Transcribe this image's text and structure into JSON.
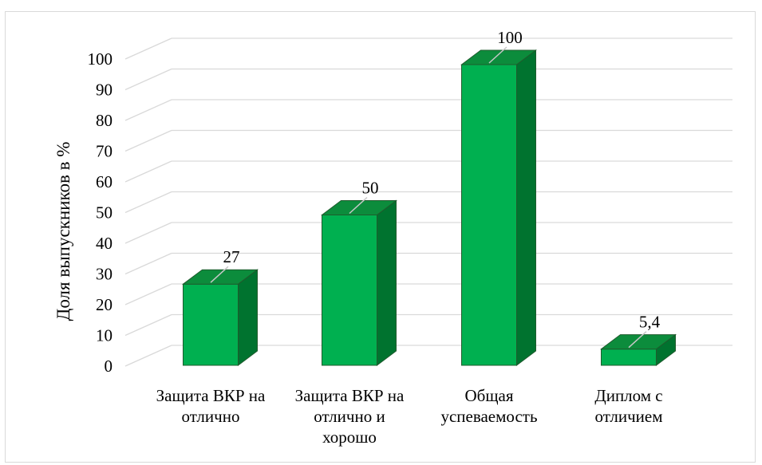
{
  "chart_data": {
    "type": "bar",
    "style": "3d-column",
    "categories": [
      [
        "Защита ВКР на",
        "отлично"
      ],
      [
        "Защита ВКР на",
        "отлично и",
        "хорошо"
      ],
      [
        "Общая",
        "успеваемость"
      ],
      [
        "Диплом с",
        "отличием"
      ]
    ],
    "values": [
      27,
      50,
      100,
      5.4
    ],
    "data_labels": [
      "27",
      "50",
      "100",
      "5,4"
    ],
    "title": "",
    "xlabel": "",
    "ylabel": "Доля выпускников в %",
    "ylim": [
      0,
      100
    ],
    "yticks": [
      0,
      10,
      20,
      30,
      40,
      50,
      60,
      70,
      80,
      90,
      100
    ],
    "grid": true,
    "legend": "none"
  },
  "colors": {
    "bar_front": "#00b050",
    "bar_side": "#00732f",
    "bar_top": "#0c8c3c",
    "bar_edge": "#1f5b2d",
    "grid": "#d9d9d9",
    "leader_line": "#c8c8c8"
  }
}
